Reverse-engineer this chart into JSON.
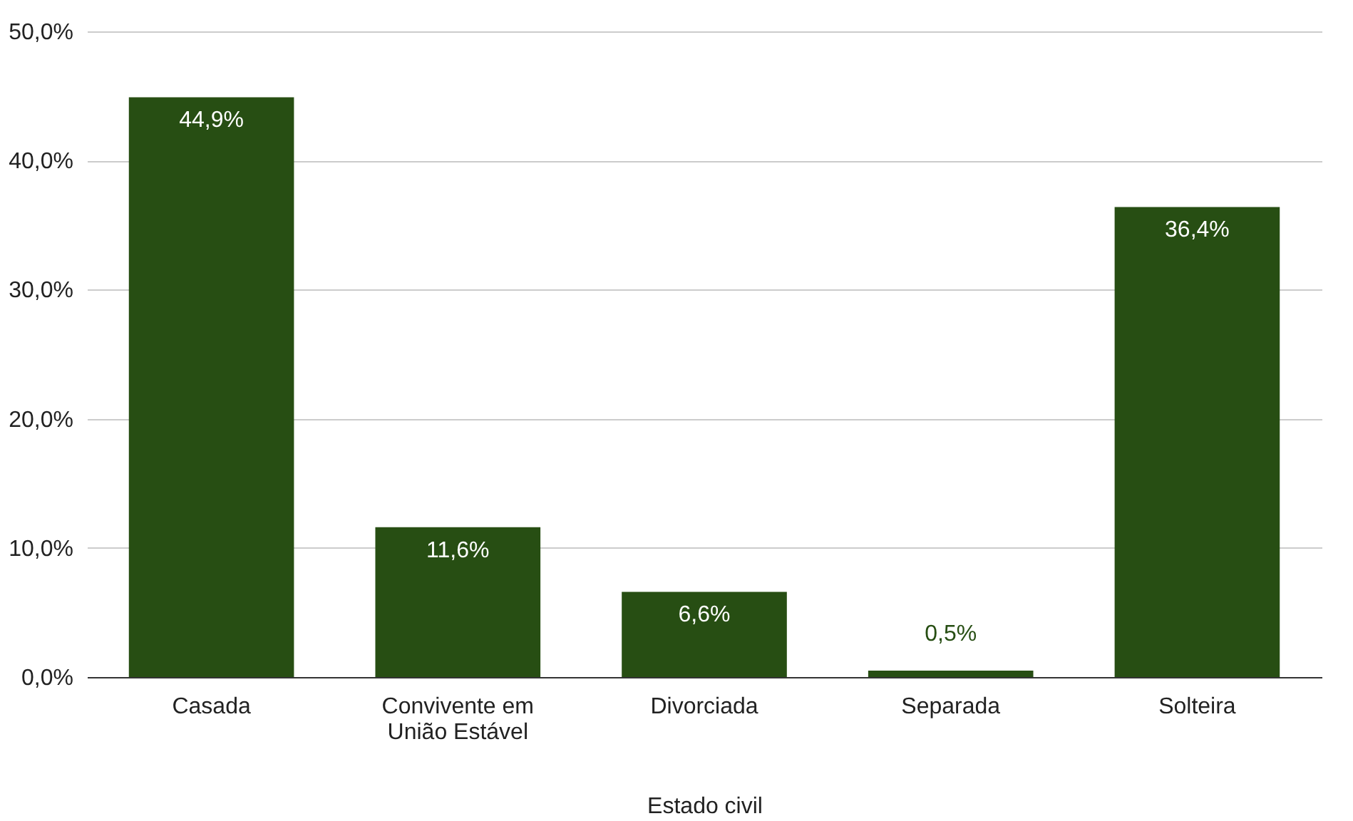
{
  "chart_data": {
    "type": "bar",
    "xlabel": "Estado civil",
    "categories": [
      "Casada",
      "Convivente em União Estável",
      "Divorciada",
      "Separada",
      "Solteira"
    ],
    "values": [
      44.9,
      11.6,
      6.6,
      0.5,
      36.4
    ],
    "value_labels": [
      "44,9%",
      "11,6%",
      "6,6%",
      "0,5%",
      "36,4%"
    ],
    "color": "#274e13",
    "ylim": [
      0,
      50
    ],
    "yticks": [
      {
        "value": 0,
        "label": "0,0%"
      },
      {
        "value": 10,
        "label": "10,0%"
      },
      {
        "value": 20,
        "label": "20,0%"
      },
      {
        "value": 30,
        "label": "30,0%"
      },
      {
        "value": 40,
        "label": "40,0%"
      },
      {
        "value": 50,
        "label": "50,0%"
      }
    ],
    "grid": "y"
  }
}
